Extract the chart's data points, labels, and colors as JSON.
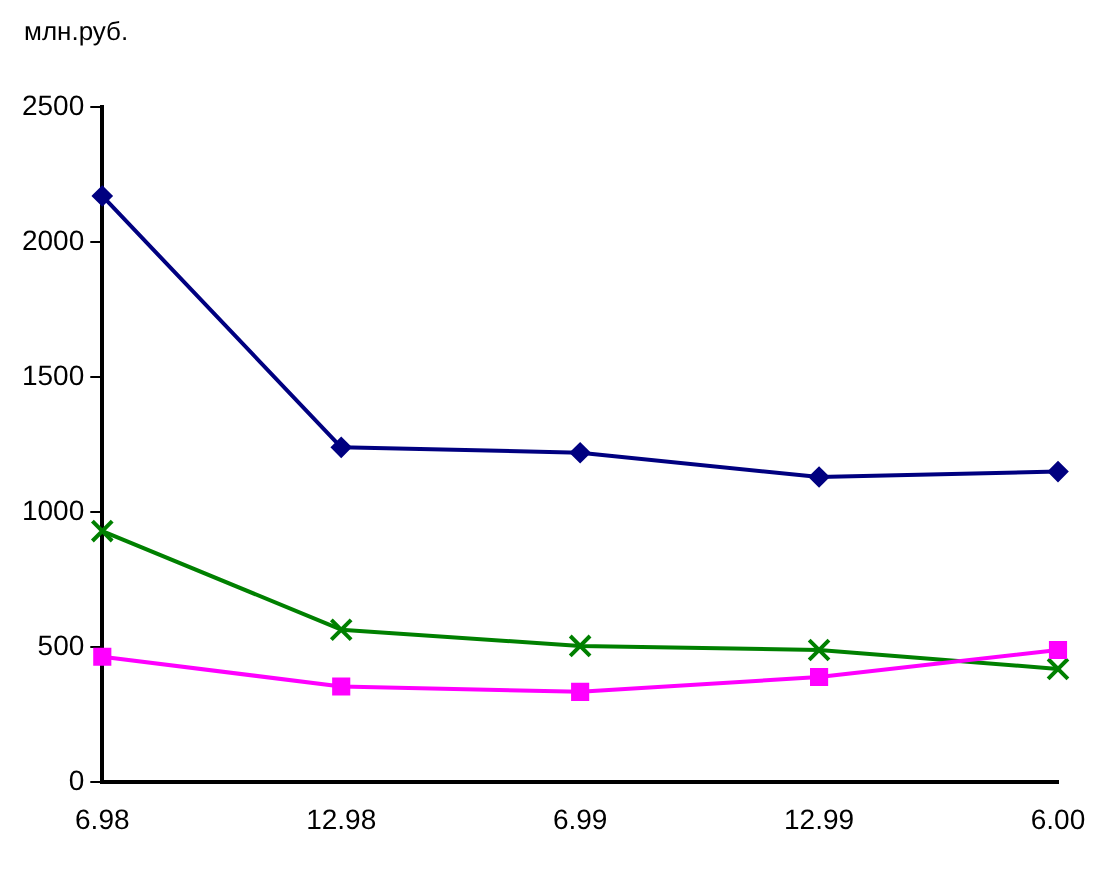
{
  "chart_data": {
    "type": "line",
    "ylabel": "млн.руб.",
    "categories": [
      "6.98",
      "12.98",
      "6.99",
      "12.99",
      "6.00"
    ],
    "series": [
      {
        "color": "#000080",
        "marker": "diamond",
        "values": [
          2170,
          1240,
          1220,
          1130,
          1150
        ]
      },
      {
        "color": "#ff00ff",
        "marker": "square",
        "values": [
          465,
          355,
          335,
          390,
          490
        ]
      },
      {
        "color": "#008000",
        "marker": "cross",
        "values": [
          930,
          565,
          505,
          490,
          420
        ]
      }
    ],
    "ylim": [
      0,
      2500
    ],
    "yticks": [
      0,
      500,
      1000,
      1500,
      2000,
      2500
    ],
    "grid": false,
    "legend": false
  }
}
